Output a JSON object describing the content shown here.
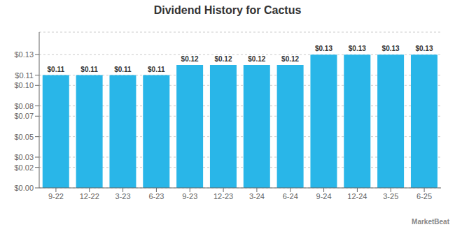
{
  "chart_data": {
    "type": "bar",
    "title": "Dividend History for Cactus",
    "categories": [
      "9-22",
      "12-22",
      "3-23",
      "6-23",
      "9-23",
      "12-23",
      "3-24",
      "6-24",
      "9-24",
      "12-24",
      "3-25",
      "6-25"
    ],
    "values": [
      0.11,
      0.11,
      0.11,
      0.11,
      0.12,
      0.12,
      0.12,
      0.12,
      0.13,
      0.13,
      0.13,
      0.13
    ],
    "value_labels": [
      "$0.11",
      "$0.11",
      "$0.11",
      "$0.11",
      "$0.12",
      "$0.12",
      "$0.12",
      "$0.12",
      "$0.13",
      "$0.13",
      "$0.13",
      "$0.13"
    ],
    "data_labels": true,
    "color": "#29b6e8",
    "ylim": [
      0,
      0.152
    ],
    "yticks": [
      {
        "value": 0.0,
        "label": "$0.00"
      },
      {
        "value": 0.02,
        "label": "$0.02"
      },
      {
        "value": 0.03,
        "label": "$0.03"
      },
      {
        "value": 0.05,
        "label": "$0.05"
      },
      {
        "value": 0.07,
        "label": "$0.07"
      },
      {
        "value": 0.08,
        "label": "$0.08"
      },
      {
        "value": 0.1,
        "label": "$0.10"
      },
      {
        "value": 0.11,
        "label": "$0.11"
      },
      {
        "value": 0.13,
        "label": "$0.13"
      }
    ],
    "grid": true,
    "annotations": [
      "MarketBeat"
    ]
  }
}
